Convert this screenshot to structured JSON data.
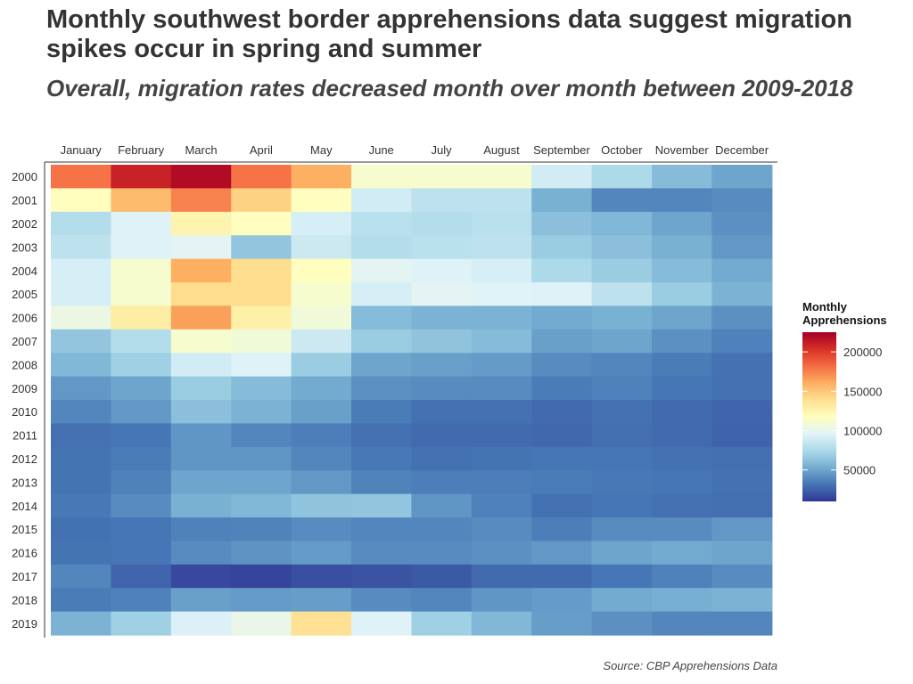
{
  "colors": {
    "scale": [
      "#313695",
      "#4575b4",
      "#74add1",
      "#abd9e9",
      "#e0f3f8",
      "#ffffbf",
      "#fee090",
      "#fdae61",
      "#f46d43",
      "#d73027",
      "#a50026"
    ],
    "axis": "#333333"
  },
  "chart_data": {
    "type": "heatmap",
    "title": "Monthly southwest border apprehensions data suggest migration spikes occur in spring and summer",
    "subtitle": "Overall, migration rates decreased month over month between 2009-2018",
    "caption": "Source: CBP Apprehensions Data",
    "xlabel": "",
    "ylabel": "",
    "x_position": "top",
    "columns": [
      "January",
      "February",
      "March",
      "April",
      "May",
      "June",
      "July",
      "August",
      "September",
      "October",
      "November",
      "December"
    ],
    "rows": [
      "2000",
      "2001",
      "2002",
      "2003",
      "2004",
      "2005",
      "2006",
      "2007",
      "2008",
      "2009",
      "2010",
      "2011",
      "2012",
      "2013",
      "2014",
      "2015",
      "2016",
      "2017",
      "2018",
      "2019"
    ],
    "values": [
      [
        180000,
        210000,
        220000,
        180000,
        160000,
        112000,
        112000,
        112000,
        90000,
        75000,
        60000,
        50000
      ],
      [
        118000,
        155000,
        175000,
        145000,
        118000,
        90000,
        82000,
        82000,
        55000,
        38000,
        38000,
        40000
      ],
      [
        78000,
        95000,
        125000,
        118000,
        92000,
        80000,
        78000,
        80000,
        62000,
        58000,
        50000,
        42000
      ],
      [
        82000,
        95000,
        98000,
        65000,
        88000,
        78000,
        80000,
        82000,
        68000,
        62000,
        55000,
        45000
      ],
      [
        92000,
        112000,
        160000,
        140000,
        118000,
        98000,
        95000,
        92000,
        75000,
        68000,
        60000,
        52000
      ],
      [
        92000,
        112000,
        140000,
        140000,
        112000,
        92000,
        98000,
        96000,
        95000,
        82000,
        68000,
        56000
      ],
      [
        104000,
        130000,
        165000,
        128000,
        108000,
        60000,
        56000,
        56000,
        52000,
        55000,
        50000,
        42000
      ],
      [
        65000,
        78000,
        112000,
        108000,
        88000,
        68000,
        64000,
        60000,
        48000,
        50000,
        42000,
        36000
      ],
      [
        58000,
        70000,
        90000,
        95000,
        68000,
        50000,
        48000,
        46000,
        40000,
        38000,
        34000,
        30000
      ],
      [
        45000,
        50000,
        68000,
        60000,
        52000,
        42000,
        40000,
        40000,
        34000,
        36000,
        32000,
        30000
      ],
      [
        38000,
        45000,
        62000,
        56000,
        48000,
        34000,
        30000,
        30000,
        28000,
        30000,
        28000,
        26000
      ],
      [
        30000,
        32000,
        44000,
        38000,
        35000,
        30000,
        28000,
        28000,
        27000,
        29000,
        28000,
        25000
      ],
      [
        31000,
        34000,
        44000,
        44000,
        38000,
        33000,
        30000,
        31000,
        32000,
        32000,
        30000,
        29000
      ],
      [
        31000,
        36000,
        50000,
        50000,
        45000,
        37000,
        35000,
        35000,
        34000,
        33000,
        32000,
        30000
      ],
      [
        33000,
        40000,
        55000,
        58000,
        64000,
        65000,
        44000,
        36000,
        30000,
        32000,
        30000,
        29000
      ],
      [
        30000,
        32000,
        36000,
        37000,
        40000,
        38000,
        38000,
        40000,
        35000,
        40000,
        40000,
        45000
      ],
      [
        31000,
        32000,
        40000,
        43000,
        46000,
        40000,
        40000,
        42000,
        45000,
        50000,
        52000,
        50000
      ],
      [
        38000,
        26000,
        16000,
        15000,
        19000,
        20000,
        22000,
        28000,
        28000,
        32000,
        36000,
        40000
      ],
      [
        34000,
        36000,
        48000,
        46000,
        47000,
        40000,
        38000,
        44000,
        46000,
        52000,
        54000,
        56000
      ],
      [
        56000,
        70000,
        94000,
        102000,
        138000,
        95000,
        70000,
        58000,
        47000,
        42000,
        38000,
        38000
      ]
    ],
    "legend": {
      "title": "Monthly Apprehensions",
      "ticks": [
        50000,
        100000,
        150000,
        200000
      ],
      "range": [
        10000,
        225000
      ],
      "placement": "right"
    }
  }
}
